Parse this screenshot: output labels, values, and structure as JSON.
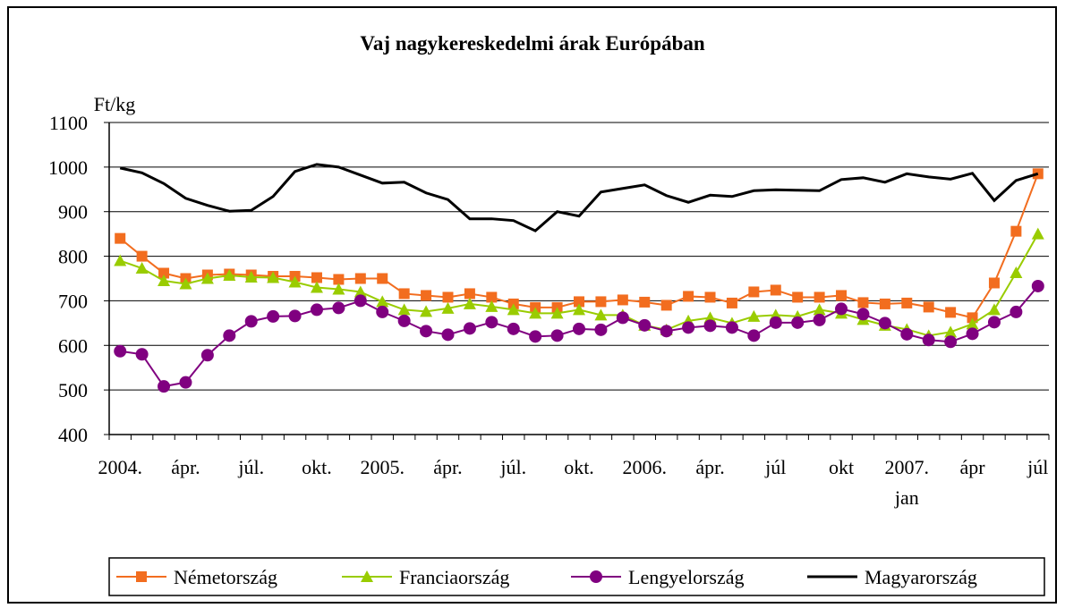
{
  "chart_data": {
    "type": "line",
    "title": "Vaj nagykereskedelmi árak Európában",
    "y_label": "Ft/kg",
    "categories": [
      "2004.",
      null,
      null,
      "ápr.",
      null,
      null,
      "júl.",
      null,
      null,
      "okt.",
      null,
      null,
      "2005.",
      null,
      null,
      "ápr.",
      null,
      null,
      "júl.",
      null,
      null,
      "okt.",
      null,
      null,
      "2006.",
      null,
      null,
      "ápr.",
      null,
      null,
      "júl",
      null,
      null,
      "okt",
      null,
      null,
      "2007. jan",
      null,
      null,
      "ápr",
      null,
      null,
      "júl"
    ],
    "ylim": [
      400,
      1100
    ],
    "yticks": [
      400,
      500,
      600,
      700,
      800,
      900,
      1000,
      1100
    ],
    "grid": true,
    "legend": "bottom",
    "series": [
      {
        "name": "Németország",
        "color": "#f26d1f",
        "marker": "square",
        "values": [
          840,
          800,
          762,
          750,
          758,
          760,
          758,
          755,
          755,
          752,
          748,
          750,
          750,
          716,
          712,
          708,
          716,
          708,
          693,
          685,
          685,
          698,
          698,
          702,
          697,
          690,
          710,
          708,
          695,
          720,
          724,
          708,
          708,
          712,
          696,
          693,
          695,
          686,
          674,
          662,
          740,
          856,
          985
        ]
      },
      {
        "name": "Franciaország",
        "color": "#99cc00",
        "marker": "triangle",
        "values": [
          790,
          773,
          745,
          738,
          750,
          757,
          753,
          752,
          742,
          730,
          726,
          720,
          698,
          680,
          676,
          683,
          693,
          687,
          680,
          672,
          672,
          680,
          668,
          668,
          645,
          635,
          655,
          662,
          650,
          665,
          668,
          665,
          680,
          672,
          658,
          645,
          636,
          622,
          630,
          648,
          680,
          763,
          850
        ]
      },
      {
        "name": "Lengyelország",
        "color": "#800080",
        "marker": "circle",
        "values": [
          587,
          580,
          508,
          517,
          578,
          622,
          654,
          665,
          666,
          680,
          684,
          700,
          675,
          655,
          632,
          624,
          638,
          652,
          637,
          620,
          622,
          637,
          635,
          662,
          645,
          632,
          640,
          644,
          640,
          622,
          651,
          651,
          657,
          682,
          670,
          650,
          625,
          612,
          608,
          626,
          652,
          675,
          733
        ]
      },
      {
        "name": "Magyarország",
        "color": "#000000",
        "marker": "none",
        "values": [
          998,
          987,
          963,
          930,
          914,
          901,
          903,
          934,
          990,
          1006,
          1000,
          982,
          964,
          966,
          942,
          927,
          884,
          884,
          880,
          857,
          900,
          890,
          944,
          952,
          960,
          936,
          921,
          937,
          934,
          947,
          949,
          948,
          947,
          972,
          976,
          966,
          985,
          978,
          973,
          986,
          925,
          970,
          985
        ]
      }
    ]
  }
}
